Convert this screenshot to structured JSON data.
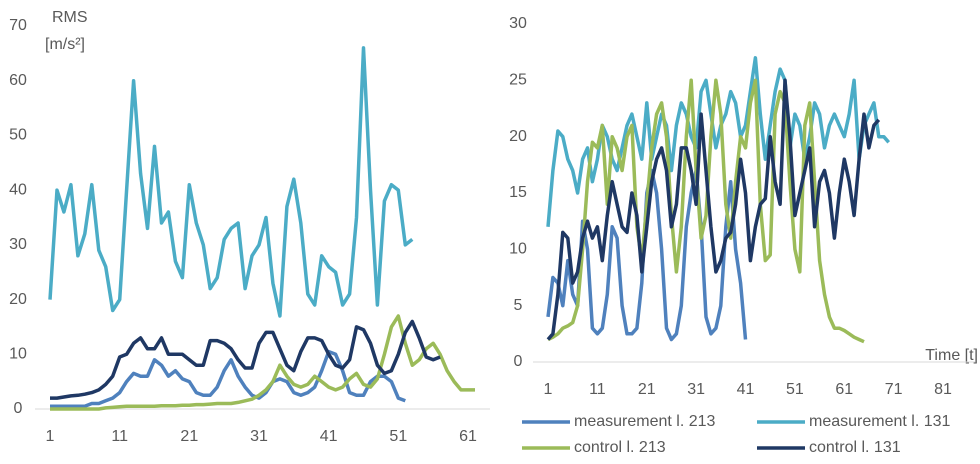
{
  "chart_data": [
    {
      "type": "line",
      "y_label": [
        "RMS",
        "[m/s²]"
      ],
      "x": [
        1,
        2,
        3,
        4,
        5,
        6,
        7,
        8,
        9,
        10,
        11,
        12,
        13,
        14,
        15,
        16,
        17,
        18,
        19,
        20,
        21,
        22,
        23,
        24,
        25,
        26,
        27,
        28,
        29,
        30,
        31,
        32,
        33,
        34,
        35,
        36,
        37,
        38,
        39,
        40,
        41,
        42,
        43,
        44,
        45,
        46,
        47,
        48,
        49,
        50,
        51,
        52,
        53,
        54,
        55,
        56,
        57,
        58,
        59,
        60,
        61,
        62,
        63
      ],
      "xlim": [
        1,
        61
      ],
      "xticks": [
        1,
        11,
        21,
        31,
        41,
        51,
        61
      ],
      "ylim": [
        0,
        70
      ],
      "yticks": [
        0,
        10,
        20,
        30,
        40,
        50,
        60,
        70
      ],
      "series": [
        {
          "color": "#4bacc6",
          "values": [
            20,
            40,
            36,
            41,
            28,
            32,
            41,
            29,
            26,
            18,
            20,
            40,
            60,
            43,
            33,
            48,
            34,
            36,
            27,
            24,
            41,
            34,
            30,
            22,
            24,
            31,
            33,
            34,
            22,
            28,
            30,
            35,
            23,
            17,
            37,
            42,
            34,
            21,
            19,
            28,
            26,
            25,
            19,
            21,
            35,
            66,
            40,
            19,
            38,
            41,
            40,
            30,
            31,
            null,
            null,
            null,
            null,
            null,
            null,
            null,
            null,
            null,
            null
          ]
        },
        {
          "color": "#4f81bd",
          "values": [
            0.5,
            0.5,
            0.5,
            0.5,
            0.5,
            0.5,
            1,
            1,
            1.5,
            2,
            3,
            5,
            6.5,
            6,
            6,
            9,
            8,
            6,
            7,
            5.5,
            5,
            3,
            2.5,
            2.5,
            4,
            7,
            9,
            6,
            4,
            2.5,
            2,
            3,
            5,
            5.5,
            5,
            3,
            2.5,
            3,
            4,
            7,
            10.5,
            10,
            7,
            3,
            2.5,
            2.5,
            5,
            6,
            6,
            5,
            2,
            1.5,
            null,
            null,
            null,
            null,
            null,
            null,
            null,
            null,
            null,
            null,
            null
          ]
        },
        {
          "color": "#9bbb59",
          "values": [
            0,
            0,
            0,
            0,
            0,
            0,
            0,
            0,
            0.2,
            0.3,
            0.4,
            0.5,
            0.5,
            0.5,
            0.5,
            0.5,
            0.6,
            0.6,
            0.6,
            0.7,
            0.7,
            0.8,
            0.8,
            0.9,
            1,
            1,
            1,
            1.2,
            1.5,
            1.8,
            2.5,
            3.5,
            5,
            8,
            6,
            4.5,
            4,
            4.5,
            6,
            5,
            4,
            3.5,
            4,
            5.5,
            6.5,
            4.5,
            4,
            5.5,
            10,
            15,
            17,
            12,
            8,
            9,
            11,
            12,
            10,
            7,
            5,
            3.5,
            3.5,
            3.5,
            null
          ]
        },
        {
          "color": "#1f3864",
          "values": [
            2,
            2,
            2.2,
            2.4,
            2.5,
            2.7,
            3,
            3.5,
            4.5,
            6,
            9.5,
            10,
            12,
            13,
            11,
            11,
            13,
            10,
            10,
            10,
            9,
            8,
            8,
            12.5,
            12.5,
            12,
            11,
            9,
            7.5,
            7.5,
            12,
            14,
            14,
            11,
            8,
            7,
            10.5,
            13,
            13,
            12.5,
            10,
            8,
            7.5,
            9,
            15,
            14.5,
            12,
            8,
            6.5,
            7,
            10,
            14,
            16,
            13,
            9.5,
            9,
            9.5,
            null,
            null,
            null,
            null,
            null,
            null
          ]
        }
      ]
    },
    {
      "type": "line",
      "x_label": "Time [t]",
      "x": [
        1,
        2,
        3,
        4,
        5,
        6,
        7,
        8,
        9,
        10,
        11,
        12,
        13,
        14,
        15,
        16,
        17,
        18,
        19,
        20,
        21,
        22,
        23,
        24,
        25,
        26,
        27,
        28,
        29,
        30,
        31,
        32,
        33,
        34,
        35,
        36,
        37,
        38,
        39,
        40,
        41,
        42,
        43,
        44,
        45,
        46,
        47,
        48,
        49,
        50,
        51,
        52,
        53,
        54,
        55,
        56,
        57,
        58,
        59,
        60,
        61,
        62,
        63,
        64,
        65,
        66,
        67,
        68,
        69,
        70,
        71,
        72,
        73,
        74
      ],
      "xlim": [
        1,
        81
      ],
      "xticks": [
        1,
        11,
        21,
        31,
        41,
        51,
        61,
        71,
        81
      ],
      "ylim": [
        0,
        30
      ],
      "yticks": [
        0,
        5,
        10,
        15,
        20,
        25,
        30
      ],
      "series": [
        {
          "name": "measurement l. 213",
          "color": "#4f81bd",
          "values": [
            4,
            7.5,
            7,
            5,
            9,
            6,
            5,
            12.5,
            10,
            3,
            2.5,
            3,
            6,
            12,
            11,
            5,
            2.5,
            2.5,
            3,
            7,
            15,
            17,
            15,
            10,
            3,
            2,
            2.5,
            5,
            12,
            15,
            17,
            12,
            4,
            2.5,
            3,
            5,
            12,
            16,
            10,
            7,
            2,
            null,
            null,
            null,
            null,
            null,
            null,
            null,
            null,
            null,
            null,
            null,
            null,
            null,
            null,
            null,
            null,
            null,
            null,
            null,
            null,
            null,
            null,
            null,
            null,
            null,
            null,
            null,
            null,
            null,
            null,
            null,
            null,
            null
          ]
        },
        {
          "name": "measurement l. 131",
          "color": "#4bacc6",
          "values": [
            12,
            17,
            20.5,
            20,
            18,
            17,
            15,
            18,
            19,
            16,
            18,
            21,
            20,
            18,
            17,
            19,
            21,
            22,
            20,
            18,
            23,
            18,
            20,
            22,
            21,
            17,
            21,
            23,
            22,
            20,
            19,
            24,
            25,
            22,
            19,
            21,
            22,
            24,
            23,
            20,
            21,
            24,
            27,
            22,
            18,
            21,
            24,
            26,
            25,
            19,
            22,
            21,
            18,
            20,
            23,
            22,
            19,
            21,
            22,
            21,
            20,
            22,
            25,
            18,
            21,
            22,
            23,
            20,
            20,
            19.5,
            null,
            null,
            null,
            null
          ]
        },
        {
          "name": "control l. 213",
          "color": "#9bbb59",
          "values": [
            2,
            2.2,
            2.5,
            3,
            3.2,
            3.5,
            5,
            10,
            16,
            19.5,
            19,
            21,
            14,
            20,
            19,
            17,
            20,
            21,
            12,
            9,
            14,
            19,
            22,
            23,
            20,
            13,
            8,
            12,
            20,
            25,
            17,
            11,
            13,
            20,
            25,
            22,
            14,
            11,
            16,
            20,
            19,
            23,
            25,
            14,
            9,
            9.5,
            22,
            24,
            23,
            16,
            10,
            8,
            21,
            23,
            16,
            9,
            6,
            4,
            3,
            3,
            2.8,
            2.5,
            2.2,
            2,
            1.8,
            null,
            null,
            null,
            null,
            null,
            null,
            null,
            null,
            null
          ]
        },
        {
          "name": "control l. 131",
          "color": "#1f3864",
          "values": [
            2,
            2.5,
            6,
            11.5,
            11,
            7,
            8,
            11,
            12.5,
            11,
            12,
            9,
            13,
            16,
            14,
            12,
            11.5,
            15,
            13,
            8,
            12,
            16,
            18,
            19,
            17,
            12,
            14,
            19,
            19,
            17,
            14,
            22,
            17,
            12,
            8,
            9,
            11,
            11.5,
            14,
            18,
            15,
            9,
            12,
            14,
            14.5,
            20,
            16,
            14,
            25,
            20,
            13,
            15,
            17,
            19,
            12,
            16,
            17,
            15,
            11,
            15,
            18,
            16,
            13,
            18,
            22,
            19,
            21,
            21.5,
            null,
            null,
            null,
            null,
            null,
            null
          ]
        }
      ]
    }
  ]
}
